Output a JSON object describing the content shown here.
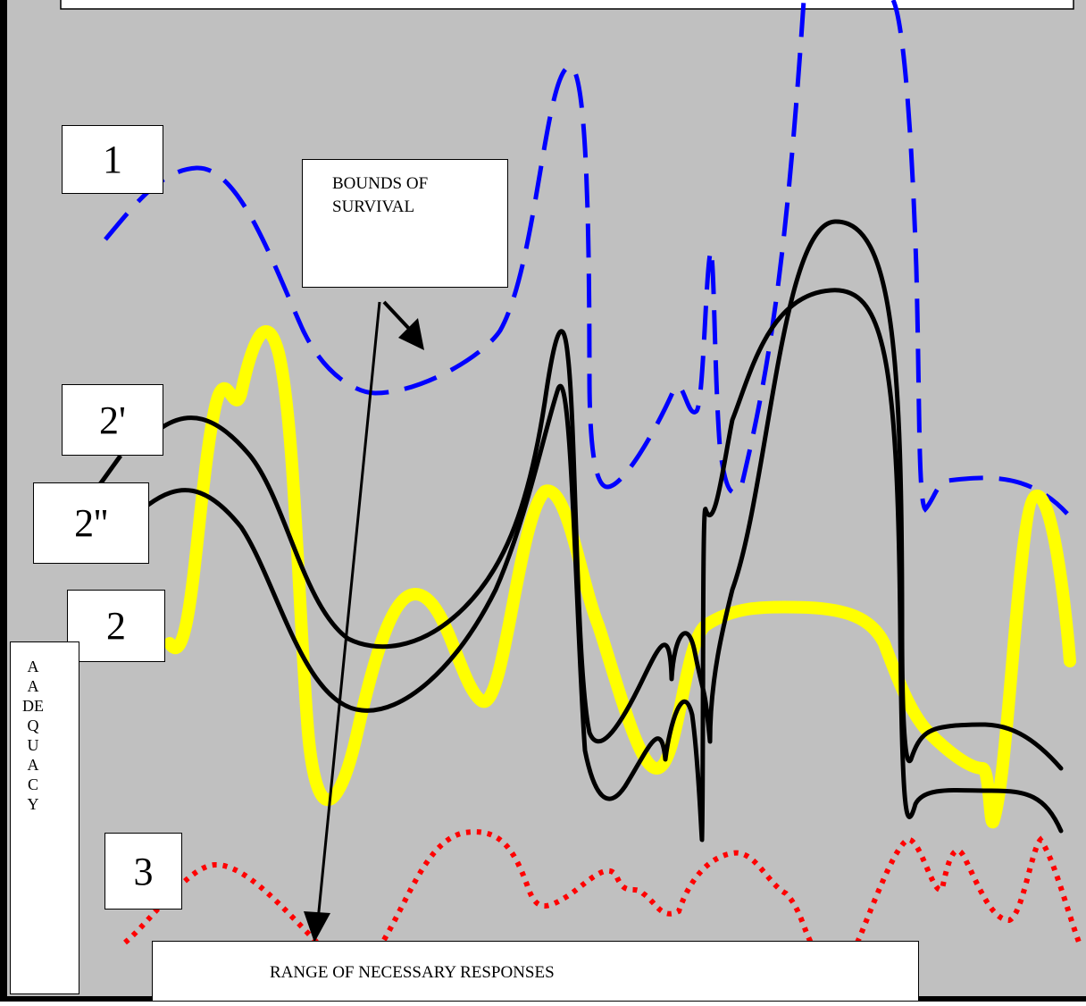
{
  "colors": {
    "background": "#c0c0c0",
    "curve_1": "#0000ff",
    "curve_2": "#ffff00",
    "curves_2_prime": "#000000",
    "curve_3": "#ff0000"
  },
  "labels": {
    "curve_1": "1",
    "curve_2": "2",
    "curve_2_prime": "2'",
    "curve_2_double_prime": "2''",
    "curve_3": "3",
    "bounds_of_survival": "BOUNDS OF SURVIVAL",
    "range_of_necessary_responses": "RANGE OF NECESSARY RESPONSES",
    "adequacy_axis": [
      "A",
      "A",
      "DE",
      "Q",
      "U",
      "A",
      "C",
      "Y"
    ]
  },
  "curves": [
    {
      "id": "curve-1",
      "label": "1",
      "style": "dashed",
      "color": "blue"
    },
    {
      "id": "curve-2",
      "label": "2",
      "style": "solid-thick",
      "color": "yellow"
    },
    {
      "id": "curve-2-prime",
      "label": "2'",
      "style": "solid",
      "color": "black"
    },
    {
      "id": "curve-2-double-prime",
      "label": "2''",
      "style": "solid",
      "color": "black"
    },
    {
      "id": "curve-3",
      "label": "3",
      "style": "dotted",
      "color": "red"
    }
  ]
}
